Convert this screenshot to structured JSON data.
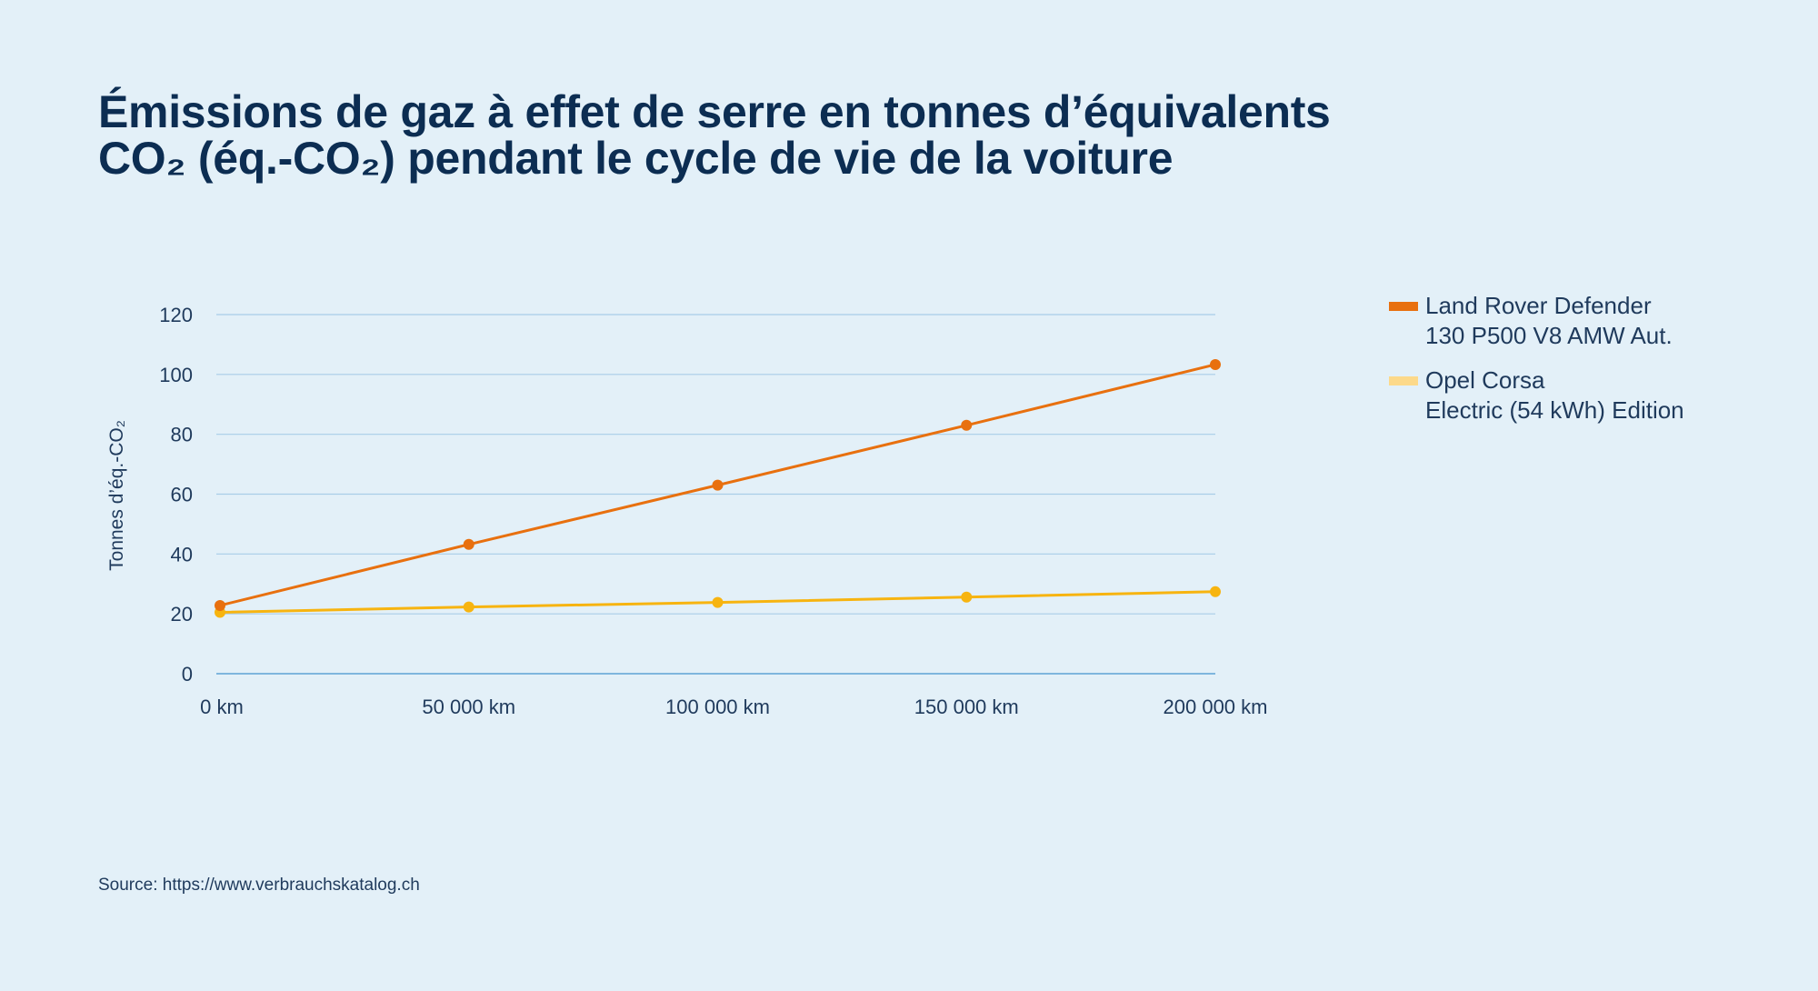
{
  "title_lines": [
    "Émissions de gaz à effet de serre en tonnes d’équivalents",
    "CO₂ (éq.-CO₂) pendant le cycle de vie de la voiture"
  ],
  "chart_data": {
    "type": "line",
    "x": [
      "0 km",
      "50 000 km",
      "100 000 km",
      "150 000 km",
      "200 000 km"
    ],
    "series": [
      {
        "name_lines": [
          "Land Rover Defender",
          "130 P500 V8 AMW Aut."
        ],
        "color": "#e8700f",
        "values": [
          22.8,
          43.2,
          63.0,
          83.0,
          103.3
        ]
      },
      {
        "name_lines": [
          "Opel Corsa",
          "Electric (54 kWh) Edition"
        ],
        "color": "#f7b410",
        "legend_color": "#fcd98a",
        "values": [
          20.5,
          22.3,
          23.8,
          25.6,
          27.4
        ]
      }
    ],
    "ylabel": "Tonnes d’éq.-CO₂",
    "ylim": [
      0,
      120
    ],
    "yticks": [
      0,
      20,
      40,
      60,
      80,
      100,
      120
    ],
    "grid": true,
    "legend_position": "right"
  },
  "source": "Source: https://www.verbrauchskatalog.ch"
}
